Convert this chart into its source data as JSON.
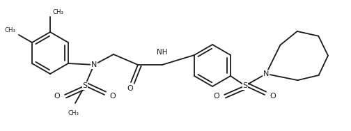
{
  "line_color": "#1a1a1a",
  "bg_color": "#ffffff",
  "lw": 1.3,
  "fig_width": 5.04,
  "fig_height": 1.88,
  "dpi": 100,
  "xlim": [
    0,
    5.04
  ],
  "ylim": [
    0,
    1.88
  ]
}
